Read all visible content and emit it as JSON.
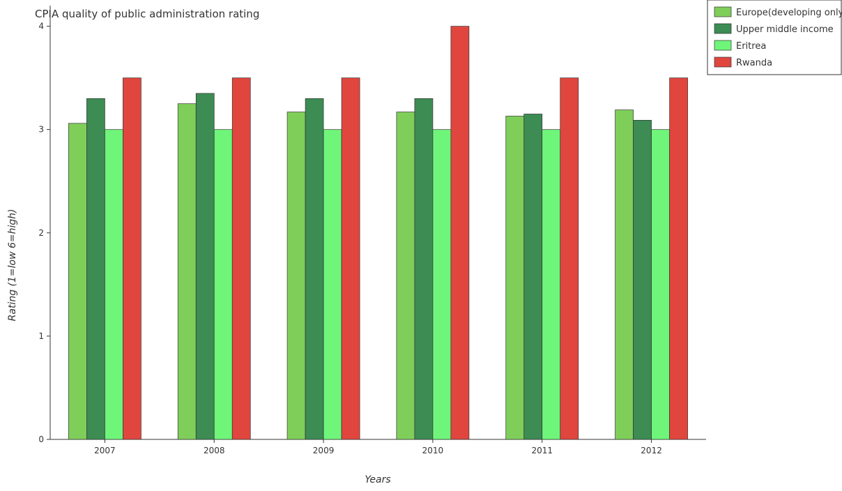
{
  "chart_data": {
    "type": "bar",
    "title": "CPIA quality of public administration rating",
    "xlabel": "Years",
    "ylabel": "Rating (1=low 6=high)",
    "categories": [
      "2007",
      "2008",
      "2009",
      "2010",
      "2011",
      "2012"
    ],
    "ylim": [
      0,
      4.2
    ],
    "yticks": [
      "0",
      "1",
      "2",
      "3",
      "4"
    ],
    "grid": false,
    "legend_position": "top-right",
    "series": [
      {
        "name": "Europe(developing only)",
        "color": "#7fce5a",
        "values": [
          3.06,
          3.25,
          3.17,
          3.17,
          3.13,
          3.19
        ]
      },
      {
        "name": "Upper middle income",
        "color": "#3c8c53",
        "values": [
          3.3,
          3.35,
          3.3,
          3.3,
          3.15,
          3.09
        ]
      },
      {
        "name": "Eritrea",
        "color": "#6ff57a",
        "values": [
          3.0,
          3.0,
          3.0,
          3.0,
          3.0,
          3.0
        ]
      },
      {
        "name": "Rwanda",
        "color": "#e0463e",
        "values": [
          3.5,
          3.5,
          3.5,
          4.0,
          3.5,
          3.5
        ]
      }
    ]
  }
}
